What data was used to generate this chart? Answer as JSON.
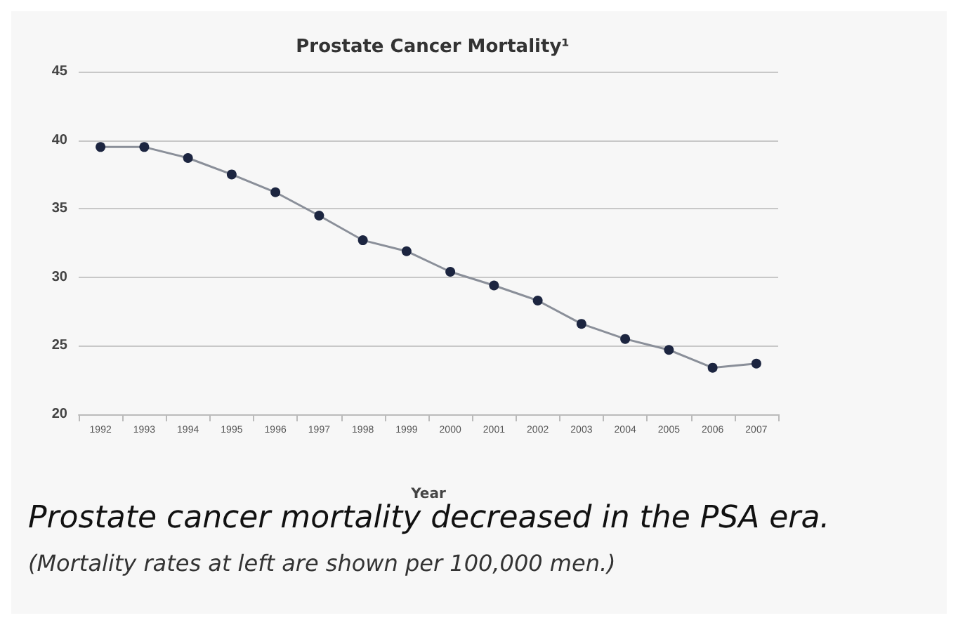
{
  "chart_data": {
    "type": "line",
    "title": "Prostate Cancer Mortality¹",
    "xlabel": "Year",
    "categories": [
      "1992",
      "1993",
      "1994",
      "1995",
      "1996",
      "1997",
      "1998",
      "1999",
      "2000",
      "2001",
      "2002",
      "2003",
      "2004",
      "2005",
      "2006",
      "2007"
    ],
    "series": [
      {
        "color": "#1c2540",
        "values": [
          39.5,
          39.5,
          38.7,
          37.5,
          36.2,
          34.5,
          32.7,
          31.9,
          30.4,
          29.4,
          28.3,
          26.6,
          25.5,
          24.7,
          23.4,
          23.7
        ]
      }
    ],
    "ylim": [
      20,
      45
    ],
    "yticks": [
      20,
      25,
      30,
      35,
      40,
      45
    ],
    "grid": "y",
    "marker": "circle",
    "line_style": "solid",
    "annotations": [
      "Prostate cancer mortality decreased in the PSA era.",
      "(Mortality rates at left are shown per 100,000 men.)"
    ]
  }
}
